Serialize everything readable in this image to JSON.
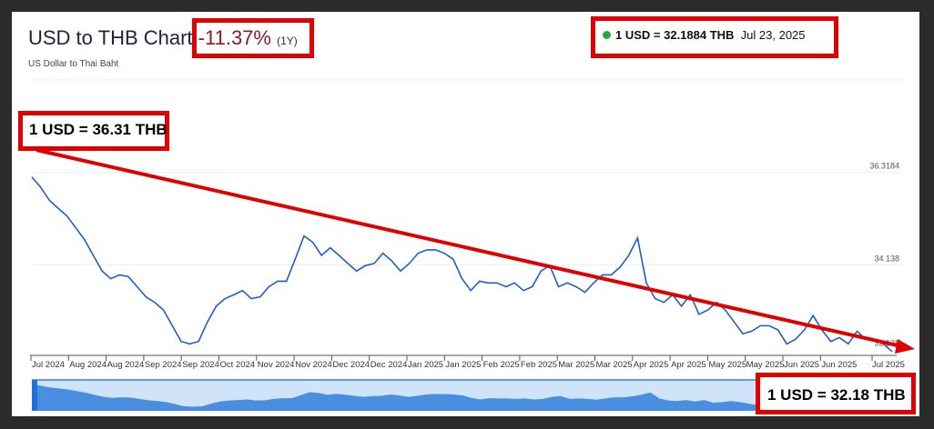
{
  "header": {
    "title": "USD to THB Chart",
    "change": "-11.37%",
    "period": "(1Y)",
    "subtitle": "US Dollar to Thai Baht"
  },
  "live_quote": {
    "text": "1 USD = 32.1884 THB",
    "date": "Jul 23, 2025",
    "status_color": "#27a844"
  },
  "annotations": {
    "start": "1 USD = 36.31 THB",
    "end": "1 USD = 32.18 THB",
    "box_color": "#e00000",
    "trend_arrow_color": "#e00000"
  },
  "chart_data": {
    "type": "line",
    "title": "USD to THB Chart",
    "line_color": "#1f5fc4",
    "grid": true,
    "y_ticks": [
      {
        "value": 36.3184,
        "label": "36.3184"
      },
      {
        "value": 34.138,
        "label": "34.138"
      },
      {
        "value": 32.138,
        "label": "32.138"
      }
    ],
    "ylim": [
      32.0,
      38.5
    ],
    "x_tick_labels": [
      "Jul 2024",
      "Aug 2024",
      "Aug 2024",
      "Sep 2024",
      "Sep 2024",
      "Oct 2024",
      "Nov 2024",
      "Nov 2024",
      "Dec 2024",
      "Dec 2024",
      "Jan 2025",
      "Jan 2025",
      "Feb 2025",
      "Feb 2025",
      "Mar 2025",
      "Mar 2025",
      "Apr 2025",
      "Apr 2025",
      "May 2025",
      "May 2025",
      "Jun 2025",
      "Jun 2025",
      "Jul 2025"
    ],
    "values": [
      36.21,
      35.97,
      35.66,
      35.47,
      35.29,
      35.01,
      34.73,
      34.36,
      33.99,
      33.81,
      33.9,
      33.86,
      33.62,
      33.38,
      33.25,
      33.07,
      32.7,
      32.33,
      32.27,
      32.33,
      32.79,
      33.16,
      33.34,
      33.43,
      33.53,
      33.34,
      33.38,
      33.62,
      33.75,
      33.75,
      34.27,
      34.82,
      34.67,
      34.36,
      34.54,
      34.36,
      34.17,
      33.99,
      34.12,
      34.17,
      34.41,
      34.23,
      33.99,
      34.17,
      34.41,
      34.49,
      34.49,
      34.41,
      34.27,
      33.81,
      33.53,
      33.75,
      33.71,
      33.71,
      33.62,
      33.71,
      33.53,
      33.62,
      33.99,
      34.12,
      33.62,
      33.71,
      33.62,
      33.49,
      33.71,
      33.9,
      33.9,
      34.08,
      34.36,
      34.77,
      33.71,
      33.34,
      33.25,
      33.43,
      33.16,
      33.43,
      32.97,
      33.07,
      33.25,
      33.07,
      32.79,
      32.51,
      32.57,
      32.7,
      32.7,
      32.6,
      32.27,
      32.38,
      32.6,
      32.94,
      32.6,
      32.33,
      32.42,
      32.27,
      32.57,
      32.38,
      32.38,
      32.27,
      32.09
    ],
    "navigator": {
      "fill_color": "#4a8fdf",
      "background_color": "#cfe3f9"
    }
  }
}
